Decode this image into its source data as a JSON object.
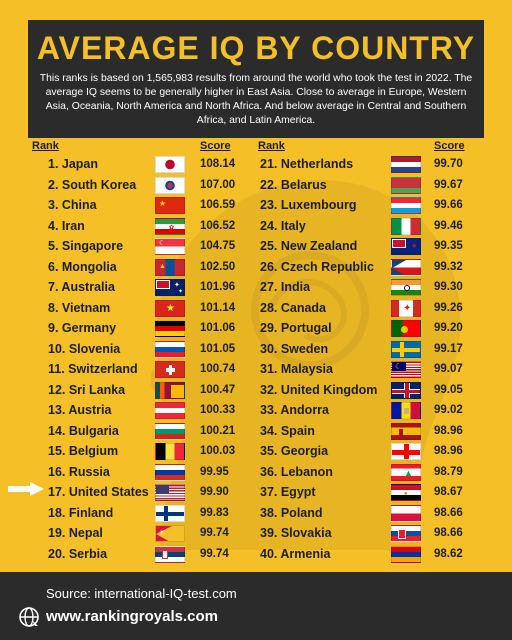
{
  "header": {
    "title": "AVERAGE IQ BY COUNTRY",
    "description": "This ranks is based on 1,565,983 results from around the world who took the test in 2022. The average IQ seems to be generally higher in East Asia. Close to average in Europe, Western Asia, Oceania, North America and North Africa. And below average in Central and Southern Africa, and Latin America."
  },
  "columns": {
    "rank_label": "Rank",
    "score_label": "Score"
  },
  "left": [
    {
      "name": "1. Japan",
      "score": "108.14",
      "flag": "japan"
    },
    {
      "name": "2. South Korea",
      "score": "107.00",
      "flag": "korea"
    },
    {
      "name": "3. China",
      "score": "106.59",
      "flag": "china"
    },
    {
      "name": "4. Iran",
      "score": "106.52",
      "flag": "iran"
    },
    {
      "name": "5. Singapore",
      "score": "104.75",
      "flag": "singapore"
    },
    {
      "name": "6. Mongolia",
      "score": "102.50",
      "flag": "mongolia"
    },
    {
      "name": "7. Australia",
      "score": "101.96",
      "flag": "australia"
    },
    {
      "name": "8. Vietnam",
      "score": "101.14",
      "flag": "vietnam"
    },
    {
      "name": "9. Germany",
      "score": "101.06",
      "flag": "germany"
    },
    {
      "name": "10. Slovenia",
      "score": "101.05",
      "flag": "slovenia"
    },
    {
      "name": "11. Switzerland",
      "score": "100.74",
      "flag": "switzerland"
    },
    {
      "name": "12. Sri Lanka",
      "score": "100.47",
      "flag": "srilanka"
    },
    {
      "name": "13. Austria",
      "score": "100.33",
      "flag": "austria"
    },
    {
      "name": "14. Bulgaria",
      "score": "100.21",
      "flag": "bulgaria"
    },
    {
      "name": "15. Belgium",
      "score": "100.03",
      "flag": "belgium"
    },
    {
      "name": "16. Russia",
      "score": "99.95",
      "flag": "russia"
    },
    {
      "name": "17. United States",
      "score": "99.90",
      "flag": "usa"
    },
    {
      "name": "18. Finland",
      "score": "99.83",
      "flag": "finland"
    },
    {
      "name": "19. Nepal",
      "score": "99.74",
      "flag": "nepal"
    },
    {
      "name": "20. Serbia",
      "score": "99.74",
      "flag": "serbia"
    }
  ],
  "right": [
    {
      "name": "21. Netherlands",
      "score": "99.70",
      "flag": "netherlands"
    },
    {
      "name": "22. Belarus",
      "score": "99.67",
      "flag": "belarus"
    },
    {
      "name": "23. Luxembourg",
      "score": "99.66",
      "flag": "luxembourg"
    },
    {
      "name": "24. Italy",
      "score": "99.46",
      "flag": "italy"
    },
    {
      "name": "25. New Zealand",
      "score": "99.35",
      "flag": "newzealand"
    },
    {
      "name": "26. Czech Republic",
      "score": "99.32",
      "flag": "czech"
    },
    {
      "name": "27. India",
      "score": "99.30",
      "flag": "india"
    },
    {
      "name": "28. Canada",
      "score": "99.26",
      "flag": "canada"
    },
    {
      "name": "29. Portugal",
      "score": "99.20",
      "flag": "portugal"
    },
    {
      "name": "30. Sweden",
      "score": "99.17",
      "flag": "sweden"
    },
    {
      "name": "31. Malaysia",
      "score": "99.07",
      "flag": "malaysia"
    },
    {
      "name": "32. United Kingdom",
      "score": "99.05",
      "flag": "uk"
    },
    {
      "name": "33. Andorra",
      "score": "99.02",
      "flag": "andorra"
    },
    {
      "name": "34. Spain",
      "score": "98.96",
      "flag": "spain"
    },
    {
      "name": "35. Georgia",
      "score": "98.96",
      "flag": "georgia"
    },
    {
      "name": "36. Lebanon",
      "score": "98.79",
      "flag": "lebanon"
    },
    {
      "name": "37. Egypt",
      "score": "98.67",
      "flag": "egypt"
    },
    {
      "name": "38. Poland",
      "score": "98.66",
      "flag": "poland"
    },
    {
      "name": "39. Slovakia",
      "score": "98.66",
      "flag": "slovakia"
    },
    {
      "name": "40. Armenia",
      "score": "98.62",
      "flag": "armenia"
    }
  ],
  "highlight_icon": "arrow-right-icon",
  "footer": {
    "source": "Source: international-IQ-test.com",
    "website": "www.rankingroyals.com",
    "icon": "globe-icon"
  },
  "colors": {
    "background": "#f5c027",
    "panel": "#2b2b2b",
    "title": "#f5c027"
  }
}
